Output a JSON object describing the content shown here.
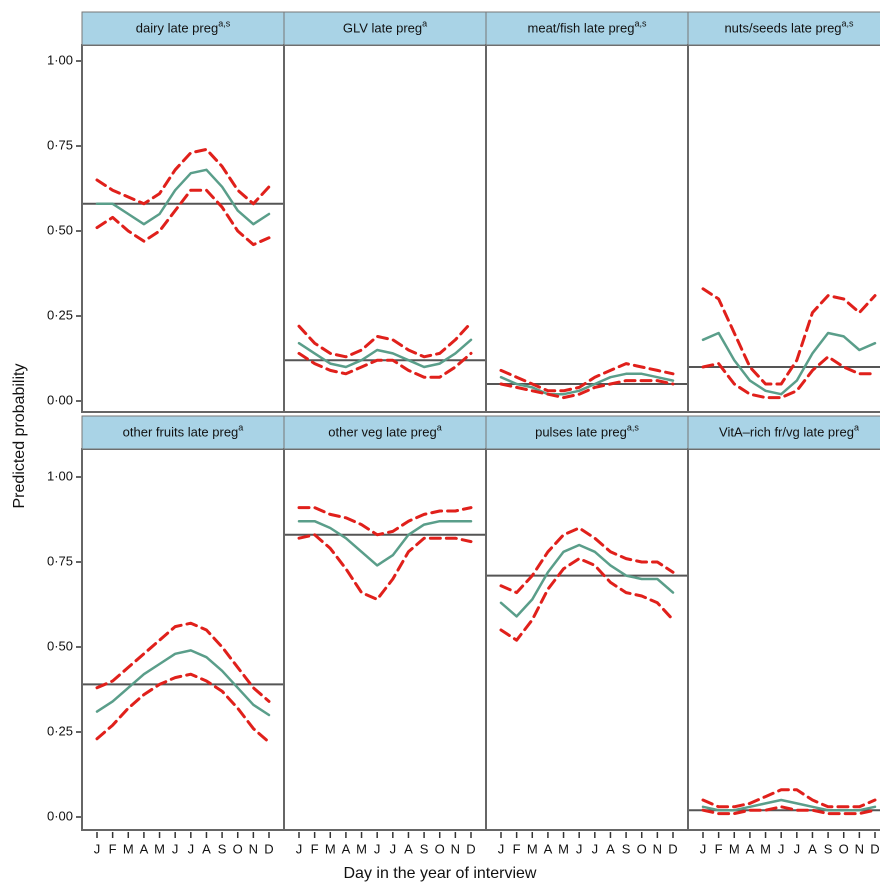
{
  "chart_data": {
    "type": "line",
    "xlabel": "Day in the year of interview",
    "ylabel": "Predicted probability",
    "categories": [
      "J",
      "F",
      "M",
      "A",
      "M",
      "J",
      "J",
      "A",
      "S",
      "O",
      "N",
      "D"
    ],
    "ylim": [
      -0.035,
      1.05
    ],
    "yticks": [
      {
        "value": 0,
        "label": "0·00"
      },
      {
        "value": 0.25,
        "label": "0·25"
      },
      {
        "value": 0.5,
        "label": "0·50"
      },
      {
        "value": 0.75,
        "label": "0·75"
      },
      {
        "value": 1,
        "label": "1·00"
      }
    ],
    "mean_color": "#555555",
    "panels": [
      {
        "title": "dairy late preg",
        "title_sup": "a,s",
        "mean": 0.58,
        "series": [
          {
            "color": "#5a9e8a",
            "dashed": false,
            "values": [
              0.58,
              0.58,
              0.55,
              0.52,
              0.55,
              0.62,
              0.67,
              0.68,
              0.63,
              0.56,
              0.52,
              0.55
            ]
          },
          {
            "color": "#e0201b",
            "dashed": true,
            "values": [
              0.51,
              0.54,
              0.5,
              0.47,
              0.5,
              0.56,
              0.62,
              0.62,
              0.57,
              0.5,
              0.46,
              0.48
            ]
          },
          {
            "color": "#e0201b",
            "dashed": true,
            "values": [
              0.65,
              0.62,
              0.6,
              0.58,
              0.61,
              0.68,
              0.73,
              0.74,
              0.69,
              0.62,
              0.58,
              0.63
            ]
          }
        ]
      },
      {
        "title": "GLV late preg",
        "title_sup": "a",
        "mean": 0.12,
        "series": [
          {
            "color": "#5a9e8a",
            "dashed": false,
            "values": [
              0.17,
              0.14,
              0.11,
              0.1,
              0.12,
              0.15,
              0.14,
              0.12,
              0.1,
              0.11,
              0.14,
              0.18
            ]
          },
          {
            "color": "#e0201b",
            "dashed": true,
            "values": [
              0.14,
              0.11,
              0.09,
              0.08,
              0.1,
              0.12,
              0.12,
              0.09,
              0.07,
              0.07,
              0.1,
              0.14
            ]
          },
          {
            "color": "#e0201b",
            "dashed": true,
            "values": [
              0.22,
              0.17,
              0.14,
              0.13,
              0.15,
              0.19,
              0.18,
              0.15,
              0.13,
              0.14,
              0.18,
              0.23
            ]
          }
        ]
      },
      {
        "title": "meat/fish late preg",
        "title_sup": "a,s",
        "mean": 0.05,
        "series": [
          {
            "color": "#5a9e8a",
            "dashed": false,
            "values": [
              0.07,
              0.05,
              0.04,
              0.02,
              0.02,
              0.03,
              0.05,
              0.07,
              0.08,
              0.08,
              0.07,
              0.06
            ]
          },
          {
            "color": "#e0201b",
            "dashed": true,
            "values": [
              0.05,
              0.04,
              0.03,
              0.02,
              0.01,
              0.02,
              0.04,
              0.05,
              0.06,
              0.06,
              0.06,
              0.05
            ]
          },
          {
            "color": "#e0201b",
            "dashed": true,
            "values": [
              0.09,
              0.07,
              0.05,
              0.03,
              0.03,
              0.04,
              0.07,
              0.09,
              0.11,
              0.1,
              0.09,
              0.08
            ]
          }
        ]
      },
      {
        "title": "nuts/seeds late preg",
        "title_sup": "a,s",
        "mean": 0.1,
        "series": [
          {
            "color": "#5a9e8a",
            "dashed": false,
            "values": [
              0.18,
              0.2,
              0.12,
              0.06,
              0.03,
              0.02,
              0.06,
              0.14,
              0.2,
              0.19,
              0.15,
              0.17
            ]
          },
          {
            "color": "#e0201b",
            "dashed": true,
            "values": [
              0.1,
              0.11,
              0.05,
              0.02,
              0.01,
              0.01,
              0.03,
              0.09,
              0.13,
              0.1,
              0.08,
              0.08
            ]
          },
          {
            "color": "#e0201b",
            "dashed": true,
            "values": [
              0.33,
              0.3,
              0.2,
              0.1,
              0.05,
              0.05,
              0.12,
              0.26,
              0.31,
              0.3,
              0.26,
              0.31
            ]
          }
        ]
      },
      {
        "title": "other fruits late preg",
        "title_sup": "a",
        "mean": 0.39,
        "series": [
          {
            "color": "#5a9e8a",
            "dashed": false,
            "values": [
              0.31,
              0.34,
              0.38,
              0.42,
              0.45,
              0.48,
              0.49,
              0.47,
              0.43,
              0.38,
              0.33,
              0.3
            ]
          },
          {
            "color": "#e0201b",
            "dashed": true,
            "values": [
              0.23,
              0.27,
              0.32,
              0.36,
              0.39,
              0.41,
              0.42,
              0.4,
              0.37,
              0.32,
              0.26,
              0.22
            ]
          },
          {
            "color": "#e0201b",
            "dashed": true,
            "values": [
              0.38,
              0.4,
              0.44,
              0.48,
              0.52,
              0.56,
              0.57,
              0.55,
              0.5,
              0.44,
              0.38,
              0.34
            ]
          }
        ]
      },
      {
        "title": "other veg late preg",
        "title_sup": "a",
        "mean": 0.83,
        "series": [
          {
            "color": "#5a9e8a",
            "dashed": false,
            "values": [
              0.87,
              0.87,
              0.85,
              0.82,
              0.78,
              0.74,
              0.77,
              0.83,
              0.86,
              0.87,
              0.87,
              0.87
            ]
          },
          {
            "color": "#e0201b",
            "dashed": true,
            "values": [
              0.82,
              0.83,
              0.79,
              0.73,
              0.66,
              0.64,
              0.7,
              0.78,
              0.82,
              0.82,
              0.82,
              0.81
            ]
          },
          {
            "color": "#e0201b",
            "dashed": true,
            "values": [
              0.91,
              0.91,
              0.89,
              0.88,
              0.86,
              0.83,
              0.84,
              0.87,
              0.89,
              0.9,
              0.9,
              0.91
            ]
          }
        ]
      },
      {
        "title": "pulses late preg",
        "title_sup": "a,s",
        "mean": 0.71,
        "series": [
          {
            "color": "#5a9e8a",
            "dashed": false,
            "values": [
              0.63,
              0.59,
              0.64,
              0.72,
              0.78,
              0.8,
              0.78,
              0.74,
              0.71,
              0.7,
              0.7,
              0.66
            ]
          },
          {
            "color": "#e0201b",
            "dashed": true,
            "values": [
              0.55,
              0.52,
              0.58,
              0.67,
              0.73,
              0.76,
              0.74,
              0.69,
              0.66,
              0.65,
              0.63,
              0.58
            ]
          },
          {
            "color": "#e0201b",
            "dashed": true,
            "values": [
              0.68,
              0.66,
              0.71,
              0.78,
              0.83,
              0.85,
              0.82,
              0.78,
              0.76,
              0.75,
              0.75,
              0.72
            ]
          }
        ]
      },
      {
        "title": "VitA–rich fr/vg late preg",
        "title_sup": "a",
        "mean": 0.02,
        "series": [
          {
            "color": "#5a9e8a",
            "dashed": false,
            "values": [
              0.03,
              0.02,
              0.02,
              0.03,
              0.04,
              0.05,
              0.04,
              0.03,
              0.02,
              0.02,
              0.02,
              0.03
            ]
          },
          {
            "color": "#e0201b",
            "dashed": true,
            "values": [
              0.02,
              0.01,
              0.01,
              0.02,
              0.02,
              0.03,
              0.02,
              0.02,
              0.01,
              0.01,
              0.01,
              0.02
            ]
          },
          {
            "color": "#e0201b",
            "dashed": true,
            "values": [
              0.05,
              0.03,
              0.03,
              0.04,
              0.06,
              0.08,
              0.08,
              0.05,
              0.03,
              0.03,
              0.03,
              0.05
            ]
          }
        ]
      }
    ]
  }
}
